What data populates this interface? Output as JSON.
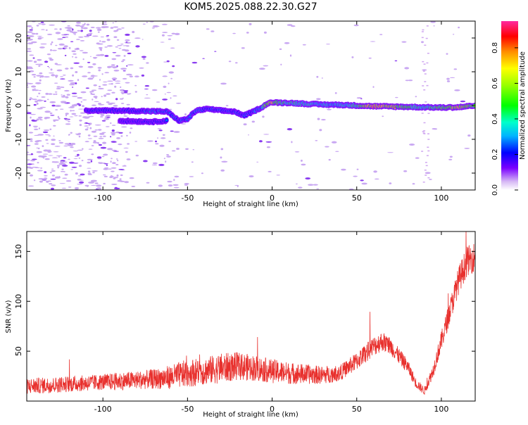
{
  "title": "KOM5.2025.088.22.30.G27",
  "chart_data": [
    {
      "type": "heatmap",
      "name": "spectrogram",
      "xlabel": "Height of straight line (km)",
      "ylabel": "Frequency (Hz)",
      "xlim": [
        -145,
        120
      ],
      "ylim": [
        -25,
        25
      ],
      "xticks": [
        -100,
        -50,
        0,
        50,
        100
      ],
      "yticks": [
        -20,
        -10,
        0,
        10,
        20
      ],
      "colorbar": {
        "label": "Normalized spectral amplitude",
        "range": [
          0,
          0.95
        ],
        "ticks": [
          0.0,
          0.2,
          0.4,
          0.6,
          0.8
        ]
      },
      "ridge": {
        "x": [
          -110,
          -100,
          -90,
          -80,
          -70,
          -62,
          -55,
          -50,
          -45,
          -38,
          -30,
          -22,
          -17,
          -12,
          -6,
          -2,
          0,
          5,
          10,
          20,
          30,
          40,
          50,
          60,
          70,
          80,
          90,
          100,
          110,
          120
        ],
        "freq": [
          -1.5,
          -1.5,
          -1.5,
          -1.6,
          -1.7,
          -1.8,
          -4.5,
          -4.0,
          -1.5,
          -1.0,
          -1.5,
          -1.8,
          -3.0,
          -2.0,
          -0.5,
          0.8,
          0.9,
          0.8,
          0.8,
          0.5,
          0.3,
          0.2,
          0.0,
          -0.2,
          -0.3,
          -0.4,
          -0.5,
          -0.6,
          -0.5,
          0.0
        ],
        "amp": [
          0.25,
          0.3,
          0.28,
          0.3,
          0.35,
          0.3,
          0.3,
          0.32,
          0.35,
          0.3,
          0.3,
          0.3,
          0.3,
          0.3,
          0.4,
          0.85,
          0.9,
          0.55,
          0.55,
          0.5,
          0.45,
          0.45,
          0.55,
          0.95,
          0.9,
          0.6,
          0.5,
          0.7,
          0.9,
          0.6
        ]
      },
      "secondary_ridge": {
        "x": [
          -90,
          -80,
          -70,
          -62
        ],
        "freq": [
          -4.5,
          -4.7,
          -4.8,
          -4.5
        ],
        "amp": [
          0.2,
          0.25,
          0.25,
          0.3
        ]
      }
    },
    {
      "type": "line",
      "name": "snr",
      "xlabel": "Height of straight line (km)",
      "ylabel": "SNR (v/v)",
      "xlim": [
        -145,
        120
      ],
      "ylim": [
        0,
        170
      ],
      "xticks": [
        -100,
        -50,
        0,
        50,
        100
      ],
      "yticks": [
        50,
        100,
        150
      ],
      "color": "#e8302d",
      "series": [
        {
          "x": [
            -145,
            -130,
            -120,
            -110,
            -100,
            -90,
            -80,
            -70,
            -60,
            -50,
            -40,
            -30,
            -20,
            -10,
            0,
            10,
            20,
            30,
            40,
            50,
            60,
            65,
            70,
            80,
            85,
            90,
            95,
            100,
            105,
            110,
            115,
            120
          ],
          "values": [
            15,
            16,
            17,
            18,
            19,
            20,
            21,
            22,
            24,
            28,
            30,
            33,
            35,
            33,
            30,
            28,
            27,
            26,
            28,
            40,
            55,
            60,
            55,
            35,
            18,
            10,
            30,
            60,
            90,
            120,
            140,
            145
          ],
          "noise": [
            8,
            8,
            8,
            8,
            8,
            9,
            9,
            10,
            12,
            14,
            14,
            15,
            14,
            13,
            12,
            11,
            10,
            9,
            8,
            9,
            10,
            10,
            9,
            7,
            5,
            4,
            7,
            10,
            12,
            14,
            15,
            15
          ]
        }
      ]
    }
  ]
}
